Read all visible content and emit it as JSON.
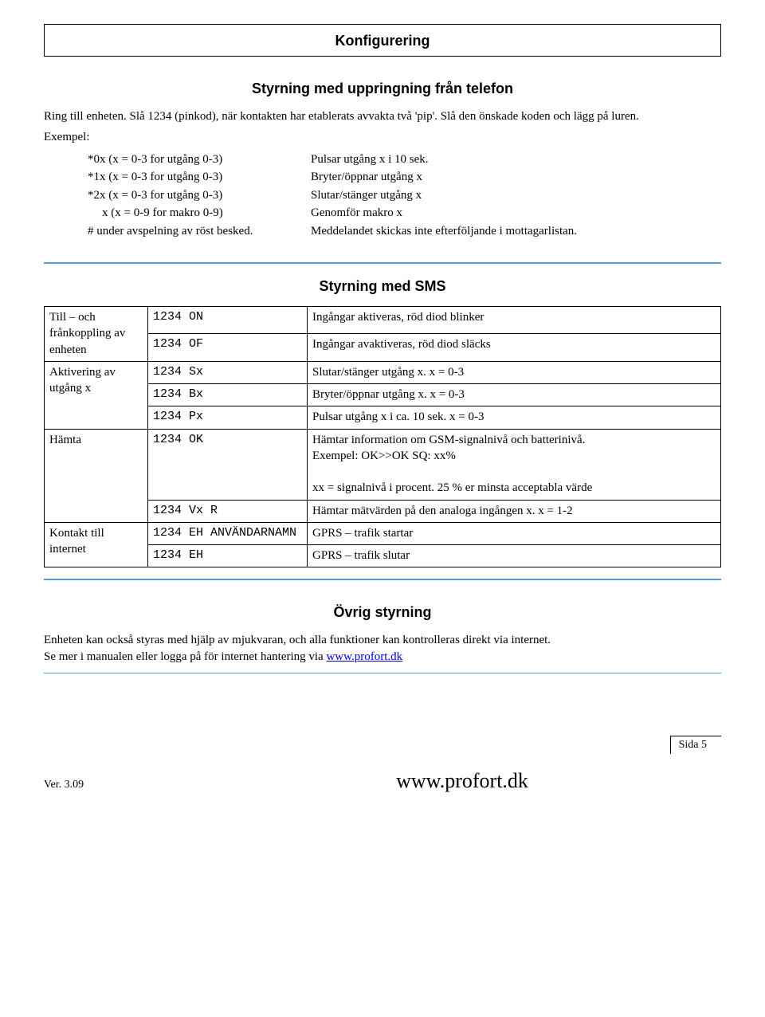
{
  "header": {
    "title": "Konfigurering"
  },
  "s1": {
    "title": "Styrning med uppringning från telefon",
    "p1": "Ring till enheten. Slå 1234 (pinkod), när kontakten har etablerats avvakta två 'pip'. Slå den önskade koden och lägg på luren.",
    "p2": "Exempel:",
    "rows": [
      {
        "l": "*0x (x = 0-3 for utgång 0-3)",
        "r": "Pulsar utgång x i 10 sek."
      },
      {
        "l": "*1x (x = 0-3 for utgång 0-3)",
        "r": "Bryter/öppnar utgång x"
      },
      {
        "l": "*2x (x = 0-3 for utgång 0-3)",
        "r": "Slutar/stänger utgång x"
      },
      {
        "l": "x (x = 0-9 for makro 0-9)",
        "r": "Genomför makro x"
      },
      {
        "l": "# under avspelning av röst besked.",
        "r": "Meddelandet skickas inte efterföljande i mottagarlistan."
      }
    ]
  },
  "s2": {
    "title": "Styrning med SMS",
    "groups": [
      {
        "label": "Till – och frånkoppling av enheten",
        "rows": [
          {
            "cmd": "1234 ON",
            "desc": "Ingångar aktiveras, röd diod blinker"
          },
          {
            "cmd": "1234 OF",
            "desc": "Ingångar avaktiveras, röd diod släcks"
          }
        ]
      },
      {
        "label": "Aktivering av utgång x",
        "rows": [
          {
            "cmd": "1234 Sx",
            "desc": "Slutar/stänger utgång x. x = 0-3"
          },
          {
            "cmd": "1234 Bx",
            "desc": "Bryter/öppnar utgång x. x = 0-3"
          },
          {
            "cmd": "1234 Px",
            "desc": "Pulsar utgång x i ca. 10 sek. x = 0-3"
          }
        ]
      },
      {
        "label": "Hämta",
        "rows": [
          {
            "cmd": "1234 OK",
            "desc": "Hämtar information om GSM-signalnivå och batterinivå.\nExempel: OK>>OK SQ: xx%\n\nxx = signalnivå i procent. 25 % er minsta acceptabla värde"
          },
          {
            "cmd": "1234 Vx R",
            "desc": "Hämtar mätvärden på den analoga ingången x. x = 1-2"
          }
        ]
      },
      {
        "label": "Kontakt till internet",
        "rows": [
          {
            "cmd": "1234 EH ANVÄNDARNAMN",
            "desc": "GPRS – trafik startar"
          },
          {
            "cmd": "1234 EH",
            "desc": "GPRS – trafik slutar"
          }
        ]
      }
    ]
  },
  "s3": {
    "title": "Övrig styrning",
    "p1_a": "Enheten kan också styras med hjälp av mjukvaran, och alla funktioner kan kontrolleras direkt via internet.",
    "p1_b": "Se mer i manualen eller logga på för internet hantering via ",
    "link": "www.profort.dk"
  },
  "footer": {
    "page": "Sida 5",
    "ver": "Ver. 3.09",
    "url": "www.profort.dk"
  }
}
